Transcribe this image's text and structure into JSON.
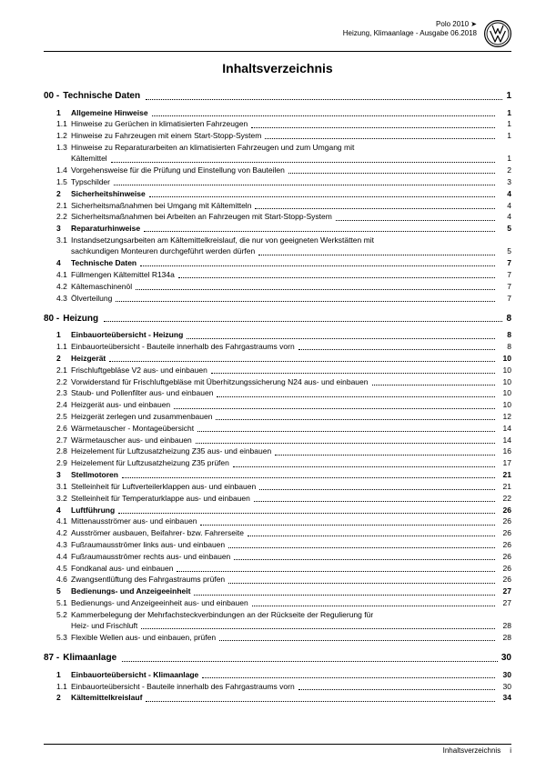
{
  "header": {
    "line1": "Polo 2010 ➤",
    "line2": "Heizung, Klimaanlage - Ausgabe 06.2018"
  },
  "title": "Inhaltsverzeichnis",
  "sections": [
    {
      "num": "00",
      "label": "Technische Daten",
      "page": "1",
      "rows": [
        {
          "num": "1",
          "label": "Allgemeine Hinweise",
          "page": "1",
          "bold": true
        },
        {
          "num": "1.1",
          "label": "Hinweise zu Gerüchen in klimatisierten Fahrzeugen",
          "page": "1"
        },
        {
          "num": "1.2",
          "label": "Hinweise zu Fahrzeugen mit einem Start-Stopp-System",
          "page": "1"
        },
        {
          "num": "1.3",
          "label": [
            "Hinweise zu Reparaturarbeiten an klimatisierten Fahrzeugen und zum Umgang mit",
            "Kältemittel"
          ],
          "page": "1",
          "multiline": true
        },
        {
          "num": "1.4",
          "label": "Vorgehensweise für die Prüfung und Einstellung von Bauteilen",
          "page": "2"
        },
        {
          "num": "1.5",
          "label": "Typschilder",
          "page": "3"
        },
        {
          "num": "2",
          "label": "Sicherheitshinweise",
          "page": "4",
          "bold": true
        },
        {
          "num": "2.1",
          "label": "Sicherheitsmaßnahmen bei Umgang mit Kältemitteln",
          "page": "4"
        },
        {
          "num": "2.2",
          "label": "Sicherheitsmaßnahmen bei Arbeiten an Fahrzeugen mit Start-Stopp-System",
          "page": "4"
        },
        {
          "num": "3",
          "label": "Reparaturhinweise",
          "page": "5",
          "bold": true
        },
        {
          "num": "3.1",
          "label": [
            "Instandsetzungsarbeiten am Kältemittelkreislauf, die nur von geeigneten Werkstätten mit",
            "sachkundigen Monteuren durchgeführt werden dürfen"
          ],
          "page": "5",
          "multiline": true
        },
        {
          "num": "4",
          "label": "Technische Daten",
          "page": "7",
          "bold": true
        },
        {
          "num": "4.1",
          "label": "Füllmengen Kältemittel R134a",
          "page": "7"
        },
        {
          "num": "4.2",
          "label": "Kältemaschinenöl",
          "page": "7"
        },
        {
          "num": "4.3",
          "label": "Ölverteilung",
          "page": "7"
        }
      ]
    },
    {
      "num": "80",
      "label": "Heizung",
      "page": "8",
      "rows": [
        {
          "num": "1",
          "label": "Einbauorteübersicht - Heizung",
          "page": "8",
          "bold": true
        },
        {
          "num": "1.1",
          "label": "Einbauorteübersicht - Bauteile innerhalb des Fahrgastraums vorn",
          "page": "8"
        },
        {
          "num": "2",
          "label": "Heizgerät",
          "page": "10",
          "bold": true
        },
        {
          "num": "2.1",
          "label": "Frischluftgebläse V2 aus- und einbauen",
          "page": "10"
        },
        {
          "num": "2.2",
          "label": "Vorwiderstand für Frischluftgebläse mit Überhitzungssicherung N24 aus- und einbauen",
          "page": "10"
        },
        {
          "num": "2.3",
          "label": "Staub- und Pollenfilter aus- und einbauen",
          "page": "10"
        },
        {
          "num": "2.4",
          "label": "Heizgerät aus- und einbauen",
          "page": "10"
        },
        {
          "num": "2.5",
          "label": "Heizgerät zerlegen und zusammenbauen",
          "page": "12"
        },
        {
          "num": "2.6",
          "label": "Wärmetauscher - Montageübersicht",
          "page": "14"
        },
        {
          "num": "2.7",
          "label": "Wärmetauscher aus- und einbauen",
          "page": "14"
        },
        {
          "num": "2.8",
          "label": "Heizelement für Luftzusatzheizung Z35 aus- und einbauen",
          "page": "16"
        },
        {
          "num": "2.9",
          "label": "Heizelement für Luftzusatzheizung Z35 prüfen",
          "page": "17"
        },
        {
          "num": "3",
          "label": "Stellmotoren",
          "page": "21",
          "bold": true
        },
        {
          "num": "3.1",
          "label": "Stelleinheit für Luftverteilerklappen aus- und einbauen",
          "page": "21"
        },
        {
          "num": "3.2",
          "label": "Stelleinheit für Temperaturklappe aus- und einbauen",
          "page": "22"
        },
        {
          "num": "4",
          "label": "Luftführung",
          "page": "26",
          "bold": true
        },
        {
          "num": "4.1",
          "label": "Mittenausströmer aus- und einbauen",
          "page": "26"
        },
        {
          "num": "4.2",
          "label": "Ausströmer ausbauen, Beifahrer- bzw. Fahrerseite",
          "page": "26"
        },
        {
          "num": "4.3",
          "label": "Fußraumausströmer links aus- und einbauen",
          "page": "26"
        },
        {
          "num": "4.4",
          "label": "Fußraumausströmer rechts aus- und einbauen",
          "page": "26"
        },
        {
          "num": "4.5",
          "label": "Fondkanal aus- und einbauen",
          "page": "26"
        },
        {
          "num": "4.6",
          "label": "Zwangsentlüftung des Fahrgastraums prüfen",
          "page": "26"
        },
        {
          "num": "5",
          "label": "Bedienungs- und Anzeigeeinheit",
          "page": "27",
          "bold": true
        },
        {
          "num": "5.1",
          "label": "Bedienungs- und Anzeigeeinheit aus- und einbauen",
          "page": "27"
        },
        {
          "num": "5.2",
          "label": [
            "Kammerbelegung der Mehrfachsteckverbindungen an der Rückseite der Regulierung für",
            "Heiz- und Frischluft"
          ],
          "page": "28",
          "multiline": true
        },
        {
          "num": "5.3",
          "label": "Flexible Wellen aus- und einbauen, prüfen",
          "page": "28"
        }
      ]
    },
    {
      "num": "87",
      "label": "Klimaanlage",
      "page": "30",
      "rows": [
        {
          "num": "1",
          "label": "Einbauorteübersicht - Klimaanlage",
          "page": "30",
          "bold": true
        },
        {
          "num": "1.1",
          "label": "Einbauorteübersicht - Bauteile innerhalb des Fahrgastraums vorn",
          "page": "30"
        },
        {
          "num": "2",
          "label": "Kältemittelkreislauf",
          "page": "34",
          "bold": true
        }
      ]
    }
  ],
  "footer": {
    "label": "Inhaltsverzeichnis",
    "page": "i"
  }
}
